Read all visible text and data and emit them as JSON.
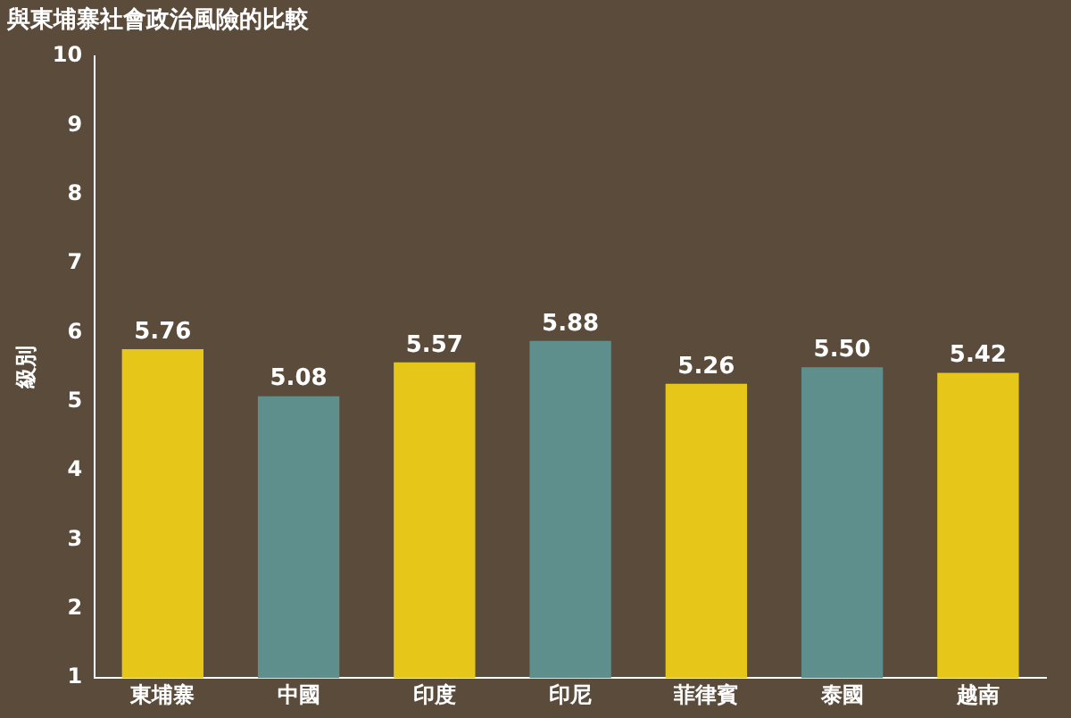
{
  "chart_data": {
    "type": "bar",
    "title": "與東埔寨社會政治風險的比較",
    "ylabel": "級別",
    "categories": [
      "東埔寨",
      "中國",
      "印度",
      "印尼",
      "菲律賓",
      "泰國",
      "越南"
    ],
    "values": [
      5.76,
      5.08,
      5.57,
      5.88,
      5.26,
      5.5,
      5.42
    ],
    "colors": [
      "#e6c619",
      "#5f8f8c",
      "#e6c619",
      "#5f8f8c",
      "#e6c619",
      "#5f8f8c",
      "#e6c619"
    ],
    "value_labels": [
      "5.76",
      "5.08",
      "5.57",
      "5.88",
      "5.26",
      "5.50",
      "5.42"
    ],
    "ylim": [
      1,
      10
    ],
    "yticks": [
      1,
      2,
      3,
      4,
      5,
      6,
      7,
      8,
      9,
      10
    ],
    "grid": false,
    "legend": false
  }
}
